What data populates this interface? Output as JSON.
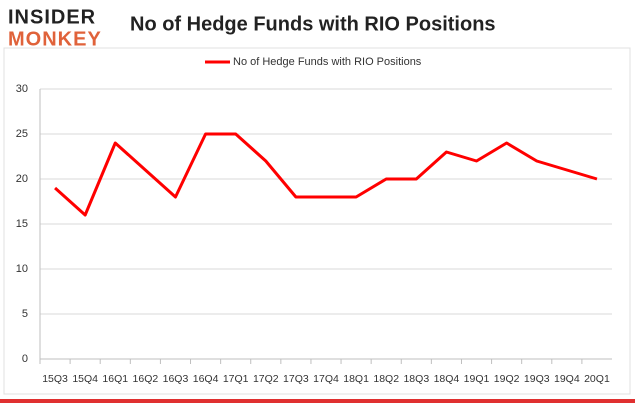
{
  "logo": {
    "line1": "INSIDER",
    "line2": "MONKEY"
  },
  "chart_data": {
    "type": "line",
    "title": "No of Hedge Funds with RIO Positions",
    "categories": [
      "15Q3",
      "15Q4",
      "16Q1",
      "16Q2",
      "16Q3",
      "16Q4",
      "17Q1",
      "17Q2",
      "17Q3",
      "17Q4",
      "18Q1",
      "18Q2",
      "18Q3",
      "18Q4",
      "19Q1",
      "19Q2",
      "19Q3",
      "19Q4",
      "20Q1"
    ],
    "series": [
      {
        "name": "No of Hedge Funds with RIO Positions",
        "color": "#ff0000",
        "values": [
          19,
          16,
          24,
          21,
          18,
          25,
          25,
          22,
          18,
          18,
          18,
          20,
          20,
          23,
          22,
          24,
          22,
          21,
          20
        ]
      }
    ],
    "ylim": [
      0,
      30
    ],
    "yticks": [
      0,
      5,
      10,
      15,
      20,
      25,
      30
    ],
    "grid": true,
    "legend": "top"
  }
}
